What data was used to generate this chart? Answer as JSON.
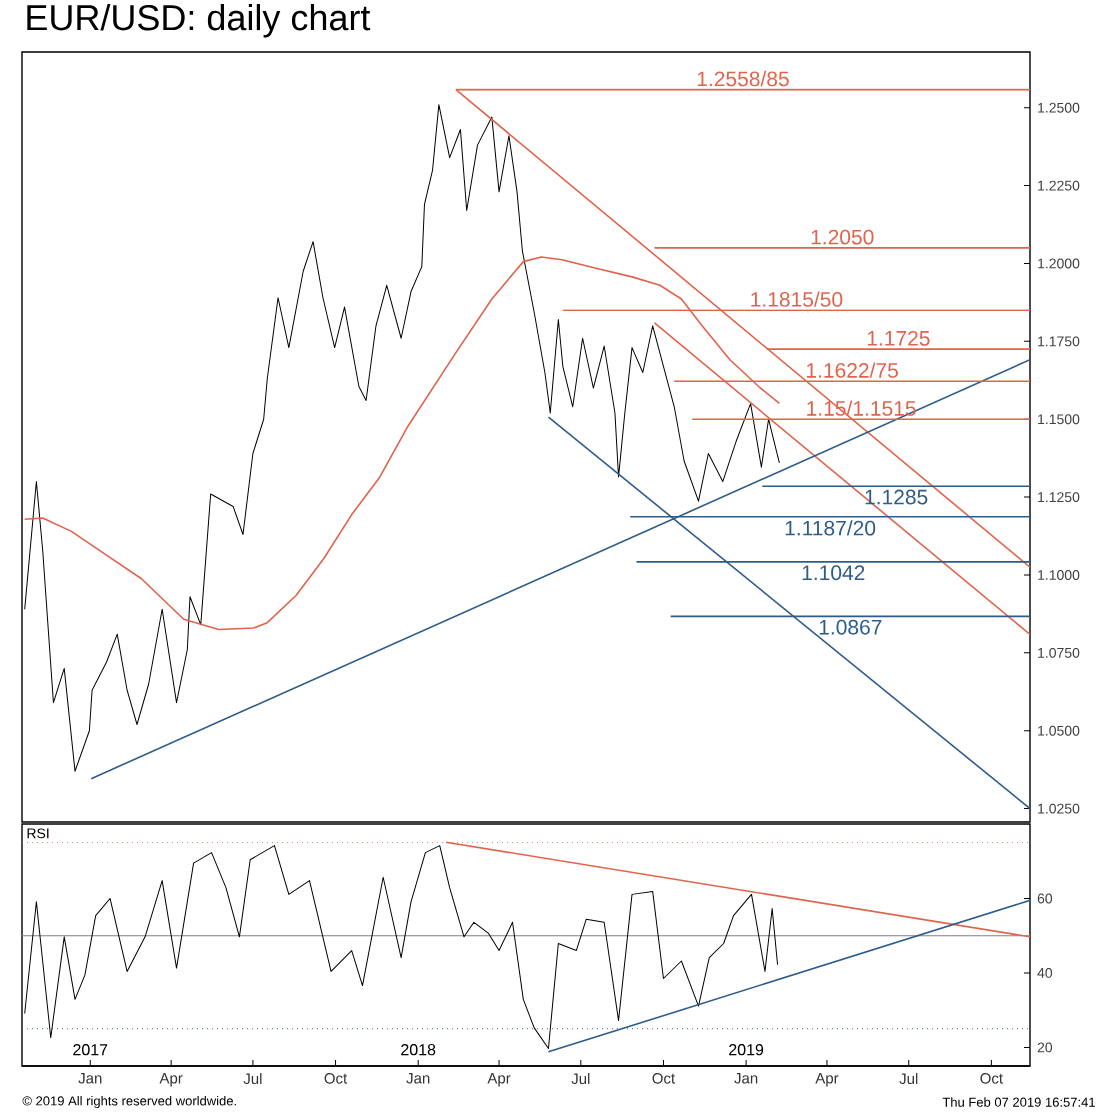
{
  "chart_data": [
    {
      "type": "line",
      "title": "EUR/USD: daily chart",
      "xlim": [
        "2016-10-17",
        "2019-11-13"
      ],
      "ylim": [
        1.0207,
        1.2679
      ],
      "tick_labels": "y",
      "yticks": [
        {
          "value": 1.025,
          "label": "1.0250"
        },
        {
          "value": 1.05,
          "label": "1.0500"
        },
        {
          "value": 1.075,
          "label": "1.0750"
        },
        {
          "value": 1.1,
          "label": "1.1000"
        },
        {
          "value": 1.125,
          "label": "1.1250"
        },
        {
          "value": 1.15,
          "label": "1.1500"
        },
        {
          "value": 1.175,
          "label": "1.1750"
        },
        {
          "value": 1.2,
          "label": "1.2000"
        },
        {
          "value": 1.225,
          "label": "1.2250"
        },
        {
          "value": 1.25,
          "label": "1.2500"
        }
      ],
      "series": [
        {
          "color": "#000000",
          "x": [
            "2016-10-20",
            "2016-11-02",
            "2016-11-09",
            "2016-11-21",
            "2016-12-03",
            "2016-12-15",
            "2016-12-31",
            "2017-01-03",
            "2017-01-19",
            "2017-01-31",
            "2017-02-11",
            "2017-02-22",
            "2017-03-07",
            "2017-03-22",
            "2017-04-07",
            "2017-04-19",
            "2017-04-22",
            "2017-05-04",
            "2017-05-15",
            "2017-06-09",
            "2017-06-20",
            "2017-07-01",
            "2017-07-13",
            "2017-07-17",
            "2017-07-29",
            "2017-08-10",
            "2017-08-26",
            "2017-09-06",
            "2017-09-17",
            "2017-09-30",
            "2017-10-11",
            "2017-10-27",
            "2017-11-04",
            "2017-11-15",
            "2017-11-27",
            "2017-12-13",
            "2017-12-24",
            "2018-01-05",
            "2018-01-08",
            "2018-01-17",
            "2018-01-24",
            "2018-02-05",
            "2018-02-17",
            "2018-02-24",
            "2018-03-08",
            "2018-03-24",
            "2018-04-01",
            "2018-04-12",
            "2018-04-21",
            "2018-04-27",
            "2018-05-10",
            "2018-05-22",
            "2018-05-28",
            "2018-06-06",
            "2018-06-11",
            "2018-06-22",
            "2018-07-03",
            "2018-07-15",
            "2018-07-27",
            "2018-08-08",
            "2018-08-12",
            "2018-08-19",
            "2018-08-27",
            "2018-09-08",
            "2018-09-19",
            "2018-10-01",
            "2018-10-13",
            "2018-10-24",
            "2018-11-09",
            "2018-11-20",
            "2018-12-06",
            "2018-12-21",
            "2019-01-06",
            "2019-01-18",
            "2019-01-26",
            "2019-02-07"
          ],
          "values": [
            1.089,
            1.13,
            1.108,
            1.059,
            1.07,
            1.037,
            1.05,
            1.063,
            1.072,
            1.081,
            1.063,
            1.052,
            1.065,
            1.089,
            1.059,
            1.076,
            1.093,
            1.084,
            1.126,
            1.122,
            1.113,
            1.139,
            1.15,
            1.163,
            1.189,
            1.173,
            1.1975,
            1.207,
            1.189,
            1.173,
            1.186,
            1.1605,
            1.156,
            1.18,
            1.193,
            1.176,
            1.191,
            1.199,
            1.219,
            1.23,
            1.251,
            1.234,
            1.243,
            1.217,
            1.238,
            1.247,
            1.223,
            1.241,
            1.223,
            1.204,
            1.1845,
            1.165,
            1.152,
            1.182,
            1.167,
            1.154,
            1.176,
            1.16,
            1.1735,
            1.152,
            1.1315,
            1.152,
            1.173,
            1.165,
            1.18,
            1.167,
            1.154,
            1.1366,
            1.1237,
            1.139,
            1.13,
            1.143,
            1.155,
            1.1346,
            1.15,
            1.136
          ]
        },
        {
          "color": "#e0634b",
          "x": [
            "2016-10-20",
            "2016-11-09",
            "2016-12-11",
            "2017-01-19",
            "2017-02-27",
            "2017-04-15",
            "2017-05-24",
            "2017-07-02",
            "2017-07-17",
            "2017-08-18",
            "2017-09-18",
            "2017-10-19",
            "2017-11-19",
            "2017-12-20",
            "2018-02-12",
            "2018-03-24",
            "2018-04-28",
            "2018-05-18",
            "2018-06-10",
            "2018-07-19",
            "2018-08-27",
            "2018-09-27",
            "2018-10-21",
            "2018-11-13",
            "2018-12-14",
            "2019-01-15",
            "2019-02-07"
          ],
          "values": [
            1.1179,
            1.1183,
            1.114,
            1.1064,
            1.0988,
            1.0858,
            1.0825,
            1.083,
            1.0847,
            1.0934,
            1.1053,
            1.1194,
            1.1313,
            1.1475,
            1.1714,
            1.1886,
            1.2006,
            1.2021,
            1.2012,
            1.1984,
            1.1957,
            1.193,
            1.1886,
            1.18,
            1.1691,
            1.1605,
            1.1551
          ]
        },
        {
          "color": "#e0634b",
          "x": [
            "2018-02-12",
            "2019-11-13"
          ],
          "values": [
            1.2558,
            1.1025
          ]
        },
        {
          "color": "#e0634b",
          "x": [
            "2018-09-21",
            "2019-11-13"
          ],
          "values": [
            1.1809,
            1.0809
          ]
        },
        {
          "color": "#2e5c8a",
          "x": [
            "2017-01-02",
            "2019-11-13"
          ],
          "values": [
            1.0346,
            1.1691
          ]
        },
        {
          "color": "#2e5c8a",
          "x": [
            "2018-05-26",
            "2019-11-13"
          ],
          "values": [
            1.1507,
            1.025
          ]
        },
        {
          "name": "1.2558/85",
          "color": "#e0634b",
          "x": [
            "2018-02-12",
            "2019-11-13"
          ],
          "values": [
            1.2558,
            1.2558
          ]
        },
        {
          "name": "1.2050",
          "color": "#e0634b",
          "x": [
            "2018-09-21",
            "2019-11-13"
          ],
          "values": [
            1.205,
            1.205
          ]
        },
        {
          "name": "1.1815/50",
          "color": "#e0634b",
          "x": [
            "2018-06-11",
            "2019-11-13"
          ],
          "values": [
            1.185,
            1.185
          ]
        },
        {
          "name": "1.1725",
          "color": "#e0634b",
          "x": [
            "2019-01-24",
            "2019-11-13"
          ],
          "values": [
            1.1725,
            1.1725
          ]
        },
        {
          "name": "1.1622/75",
          "color": "#e0634b",
          "x": [
            "2018-10-13",
            "2019-11-13"
          ],
          "values": [
            1.1622,
            1.1622
          ]
        },
        {
          "name": "1.15/1.1515",
          "color": "#e0634b",
          "x": [
            "2018-11-02",
            "2019-11-13"
          ],
          "values": [
            1.15,
            1.15
          ]
        },
        {
          "name": "1.1285",
          "color": "#2e5c8a",
          "x": [
            "2019-01-19",
            "2019-11-13"
          ],
          "values": [
            1.1285,
            1.1285
          ]
        },
        {
          "name": "1.1187/20",
          "color": "#2e5c8a",
          "x": [
            "2018-08-25",
            "2019-11-13"
          ],
          "values": [
            1.1187,
            1.1187
          ]
        },
        {
          "name": "1.1042",
          "color": "#2e5c8a",
          "x": [
            "2018-09-01",
            "2019-11-13"
          ],
          "values": [
            1.1042,
            1.1042
          ]
        },
        {
          "name": "1.0867",
          "color": "#2e5c8a",
          "x": [
            "2018-10-09",
            "2019-11-13"
          ],
          "values": [
            1.0867,
            1.0867
          ]
        }
      ]
    },
    {
      "type": "line",
      "title": "RSI",
      "xlim": [
        "2016-10-17",
        "2019-11-13"
      ],
      "ylim": [
        15,
        80
      ],
      "yticks": [
        20,
        40,
        60
      ],
      "xticks": [
        {
          "value": "2017-01-01",
          "label": "Jan"
        },
        {
          "value": "2017-04-01",
          "label": "Apr"
        },
        {
          "value": "2017-07-01",
          "label": "Jul"
        },
        {
          "value": "2017-10-01",
          "label": "Oct"
        },
        {
          "value": "2018-01-01",
          "label": "Jan"
        },
        {
          "value": "2018-04-01",
          "label": "Apr"
        },
        {
          "value": "2018-07-01",
          "label": "Jul"
        },
        {
          "value": "2018-10-01",
          "label": "Oct"
        },
        {
          "value": "2019-01-01",
          "label": "Jan"
        },
        {
          "value": "2019-04-01",
          "label": "Apr"
        },
        {
          "value": "2019-07-01",
          "label": "Jul"
        },
        {
          "value": "2019-10-01",
          "label": "Oct"
        }
      ],
      "ref_lines": [
        {
          "axis": "y",
          "value": 75,
          "color": "#e0634b",
          "line_style": "dotted"
        },
        {
          "axis": "y",
          "value": 50,
          "color": "#808080",
          "line_style": "solid"
        },
        {
          "axis": "y",
          "value": 25,
          "color": "#2e5c8a",
          "line_style": "dotted"
        }
      ],
      "series": [
        {
          "color": "#000000",
          "x": [
            "2016-10-20",
            "2016-11-02",
            "2016-11-18",
            "2016-12-03",
            "2016-12-15",
            "2016-12-26",
            "2017-01-07",
            "2017-01-23",
            "2017-02-11",
            "2017-03-03",
            "2017-03-22",
            "2017-04-07",
            "2017-04-26",
            "2017-05-16",
            "2017-06-01",
            "2017-06-16",
            "2017-06-28",
            "2017-07-25",
            "2017-08-10",
            "2017-09-02",
            "2017-09-26",
            "2017-10-19",
            "2017-10-31",
            "2017-11-23",
            "2017-12-13",
            "2017-12-24",
            "2018-01-09",
            "2018-01-25",
            "2018-02-05",
            "2018-02-21",
            "2018-03-04",
            "2018-03-20",
            "2018-04-01",
            "2018-04-16",
            "2018-04-28",
            "2018-05-10",
            "2018-05-26",
            "2018-06-06",
            "2018-06-26",
            "2018-07-07",
            "2018-07-27",
            "2018-08-12",
            "2018-08-27",
            "2018-09-19",
            "2018-10-01",
            "2018-10-21",
            "2018-11-09",
            "2018-11-21",
            "2018-12-07",
            "2018-12-18",
            "2019-01-07",
            "2019-01-22",
            "2019-01-30",
            "2019-02-05"
          ],
          "values": [
            29.1,
            59.1,
            22.6,
            49.7,
            32.9,
            39.4,
            55.4,
            60,
            40.4,
            49.7,
            64.8,
            41.3,
            69.5,
            72.3,
            62.9,
            49.7,
            70.4,
            74.2,
            61.1,
            64.8,
            40.4,
            46,
            36.6,
            65.7,
            44.1,
            59.1,
            72.3,
            74.2,
            62.9,
            49.7,
            53.6,
            50.7,
            46,
            53.6,
            32.9,
            25.3,
            19.7,
            47.9,
            46,
            54.4,
            53.6,
            27.2,
            61.1,
            61.9,
            38.5,
            43.2,
            31.1,
            44.1,
            47.9,
            55.4,
            61.1,
            40.4,
            57.3,
            42.2
          ]
        },
        {
          "color": "#e0634b",
          "x": [
            "2018-02-01",
            "2019-11-13"
          ],
          "values": [
            75.1,
            49.7
          ]
        },
        {
          "color": "#2e5c8a",
          "x": [
            "2018-05-26",
            "2019-11-13"
          ],
          "values": [
            18.8,
            59.5
          ]
        }
      ],
      "x2lim": [
        "2016-10-17",
        "2019-11-13"
      ],
      "x2ticks": [
        {
          "value": "2017-01-01",
          "label": "2017"
        },
        {
          "value": "2018-01-01",
          "label": "2018"
        },
        {
          "value": "2019-01-01",
          "label": "2019"
        }
      ],
      "annotations": [
        "© 2019 All rights reserved worldwide.",
        "Thu Feb 07 2019 16:57:41"
      ]
    }
  ]
}
